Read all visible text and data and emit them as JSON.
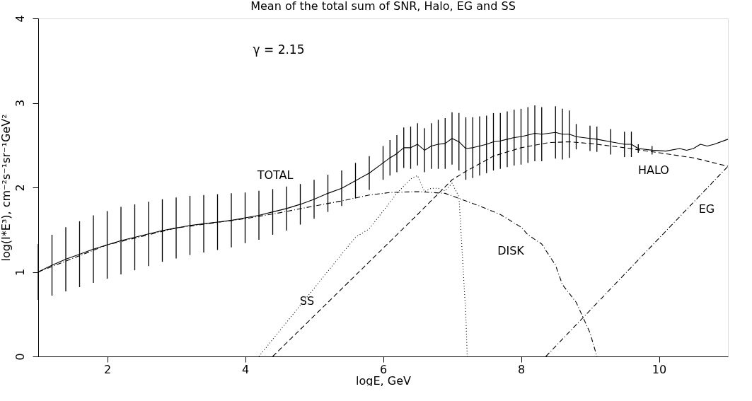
{
  "chart_data": {
    "type": "line",
    "title": "Mean of the total sum of SNR, Halo, EG and SS",
    "xlabel": "logE, GeV",
    "ylabel": "log(I*E³), cm⁻²s⁻¹sr⁻¹GeV²",
    "xlim": [
      1,
      11
    ],
    "xticks": [
      2,
      4,
      6,
      8,
      10
    ],
    "ylim": [
      0,
      4
    ],
    "yticks": [
      0,
      1,
      2,
      3,
      4
    ],
    "grid": false,
    "marker": "none",
    "series": [
      {
        "name": "TOTAL",
        "color": "#000000",
        "line_style": "solid",
        "x": [
          1.0,
          1.2,
          1.4,
          1.6,
          1.8,
          2.0,
          2.2,
          2.4,
          2.6,
          2.8,
          3.0,
          3.2,
          3.4,
          3.6,
          3.8,
          4.0,
          4.2,
          4.4,
          4.6,
          4.8,
          5.0,
          5.2,
          5.4,
          5.6,
          5.8,
          6.0,
          6.1,
          6.2,
          6.3,
          6.4,
          6.5,
          6.6,
          6.7,
          6.8,
          6.9,
          7.0,
          7.1,
          7.2,
          7.3,
          7.4,
          7.5,
          7.6,
          7.7,
          7.8,
          7.9,
          8.0,
          8.1,
          8.2,
          8.3,
          8.5,
          8.6,
          8.7,
          8.8,
          9.0,
          9.1,
          9.3,
          9.5,
          9.6,
          9.7,
          9.9,
          10.1,
          10.3,
          10.4,
          10.5,
          10.6,
          10.7,
          10.8,
          11.0
        ],
        "values": [
          1.0,
          1.08,
          1.15,
          1.21,
          1.27,
          1.32,
          1.37,
          1.41,
          1.45,
          1.49,
          1.52,
          1.55,
          1.57,
          1.59,
          1.61,
          1.64,
          1.67,
          1.71,
          1.75,
          1.8,
          1.86,
          1.93,
          1.99,
          2.08,
          2.17,
          2.29,
          2.35,
          2.4,
          2.47,
          2.47,
          2.51,
          2.44,
          2.49,
          2.51,
          2.52,
          2.58,
          2.54,
          2.46,
          2.47,
          2.49,
          2.51,
          2.54,
          2.55,
          2.57,
          2.59,
          2.6,
          2.62,
          2.64,
          2.63,
          2.65,
          2.63,
          2.63,
          2.6,
          2.58,
          2.57,
          2.54,
          2.51,
          2.51,
          2.46,
          2.44,
          2.43,
          2.46,
          2.44,
          2.46,
          2.51,
          2.49,
          2.51,
          2.57
        ],
        "errors": [
          0.33,
          0.36,
          0.38,
          0.39,
          0.4,
          0.4,
          0.4,
          0.39,
          0.38,
          0.37,
          0.36,
          0.35,
          0.34,
          0.33,
          0.32,
          0.3,
          0.29,
          0.27,
          0.26,
          0.24,
          0.23,
          0.22,
          0.21,
          0.21,
          0.2,
          0.2,
          0.21,
          0.22,
          0.24,
          0.25,
          0.25,
          0.26,
          0.27,
          0.29,
          0.3,
          0.31,
          0.34,
          0.37,
          0.36,
          0.35,
          0.34,
          0.34,
          0.33,
          0.33,
          0.33,
          0.33,
          0.33,
          0.33,
          0.32,
          0.31,
          0.3,
          0.28,
          0.15,
          0.15,
          0.15,
          0.15,
          0.15,
          0.15,
          0.05,
          0.05,
          null,
          null,
          null,
          null,
          null,
          null,
          null,
          null
        ]
      },
      {
        "name": "DISK",
        "color": "#000000",
        "line_style": "dashdot",
        "x": [
          1.0,
          2.0,
          3.0,
          4.0,
          4.5,
          5.0,
          5.4,
          5.8,
          6.1,
          6.5,
          6.9,
          7.1,
          7.4,
          7.7,
          8.0,
          8.1,
          8.3,
          8.5,
          8.6,
          8.8,
          9.0,
          9.1
        ],
        "values": [
          1.0,
          1.32,
          1.52,
          1.63,
          1.7,
          1.78,
          1.84,
          1.91,
          1.94,
          1.95,
          1.93,
          1.87,
          1.78,
          1.68,
          1.53,
          1.44,
          1.33,
          1.08,
          0.85,
          0.64,
          0.28,
          0.0
        ]
      },
      {
        "name": "HALO",
        "color": "#000000",
        "line_style": "dashed",
        "x": [
          4.4,
          5.0,
          6.0,
          6.5,
          7.0,
          7.2,
          7.6,
          8.0,
          8.4,
          8.7,
          9.0,
          9.5,
          10.0,
          10.5,
          11.0
        ],
        "values": [
          0.0,
          0.48,
          1.28,
          1.68,
          2.09,
          2.19,
          2.37,
          2.47,
          2.53,
          2.54,
          2.52,
          2.47,
          2.41,
          2.35,
          2.25
        ]
      },
      {
        "name": "SS",
        "color": "#000000",
        "line_style": "dotted",
        "x": [
          4.2,
          5.4,
          5.6,
          5.8,
          6.0,
          6.2,
          6.4,
          6.5,
          6.6,
          6.7,
          6.8,
          6.9,
          7.0,
          7.1,
          7.2,
          7.22
        ],
        "values": [
          0.0,
          1.21,
          1.41,
          1.51,
          1.72,
          1.93,
          2.1,
          2.14,
          1.95,
          1.99,
          1.99,
          1.96,
          2.05,
          1.89,
          0.49,
          0.0
        ]
      },
      {
        "name": "EG",
        "color": "#000000",
        "line_style": "dashdot",
        "x": [
          8.36,
          11.0
        ],
        "values": [
          0.0,
          2.25
        ]
      }
    ],
    "annotations": [
      "γ = 2.15"
    ]
  }
}
